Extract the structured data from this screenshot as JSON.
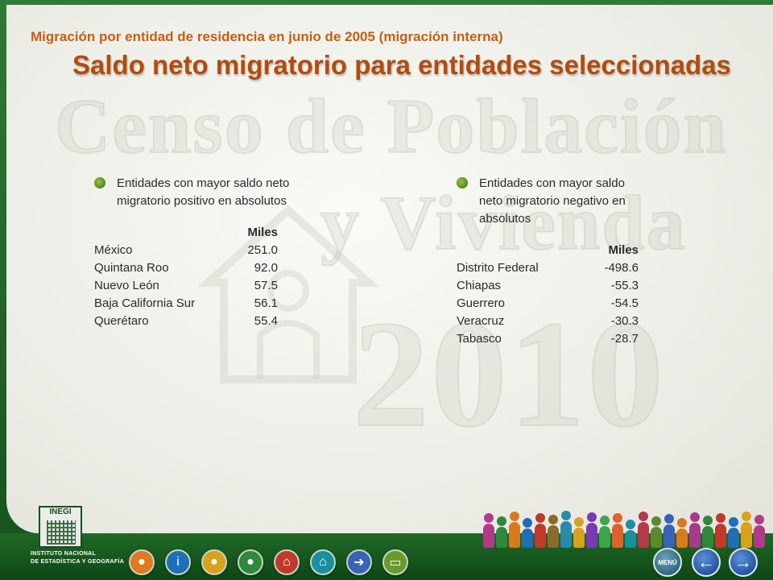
{
  "header": {
    "subtitle": "Migración por entidad de residencia en junio de 2005 (migración interna)",
    "title": "Saldo neto migratorio para entidades seleccionadas"
  },
  "watermark": {
    "line1": "Censo de Población",
    "line2": "y Vivienda",
    "line3": "2010"
  },
  "left_panel": {
    "bullet": "Entidades con mayor saldo neto migratorio positivo en absolutos",
    "unit_header": "Miles",
    "rows": [
      {
        "name": "México",
        "value": "251.0"
      },
      {
        "name": "Quintana Roo",
        "value": "92.0"
      },
      {
        "name": "Nuevo León",
        "value": "57.5"
      },
      {
        "name": "Baja California Sur",
        "value": "56.1"
      },
      {
        "name": "Querétaro",
        "value": "55.4"
      }
    ]
  },
  "right_panel": {
    "bullet": "Entidades con mayor saldo neto migratorio negativo en absolutos",
    "unit_header": "Miles",
    "rows": [
      {
        "name": "Distrito Federal",
        "value": "-498.6"
      },
      {
        "name": "Chiapas",
        "value": "-55.3"
      },
      {
        "name": "Guerrero",
        "value": "-54.5"
      },
      {
        "name": "Veracruz",
        "value": "-30.3"
      },
      {
        "name": "Tabasco",
        "value": "-28.7"
      }
    ]
  },
  "logo": {
    "name": "INEGI",
    "caption_line1": "INSTITUTO NACIONAL",
    "caption_line2": "DE ESTADÍSTICA Y GEOGRAFÍA"
  },
  "footer": {
    "nav_icons": [
      {
        "icon": "family-icon",
        "color": "#e07a1e"
      },
      {
        "icon": "info-icon",
        "color": "#1f6fb8"
      },
      {
        "icon": "people-icon",
        "color": "#d8a21e"
      },
      {
        "icon": "person-icon",
        "color": "#2e8a3a"
      },
      {
        "icon": "home-icon",
        "color": "#c0392b"
      },
      {
        "icon": "house-icon",
        "color": "#1a8fa0"
      },
      {
        "icon": "migration-icon",
        "color": "#3a63b8"
      },
      {
        "icon": "document-icon",
        "color": "#6a9a2a"
      }
    ],
    "menu_label": "MENÚ",
    "prev_arrow": "←",
    "next_arrow": "→"
  }
}
